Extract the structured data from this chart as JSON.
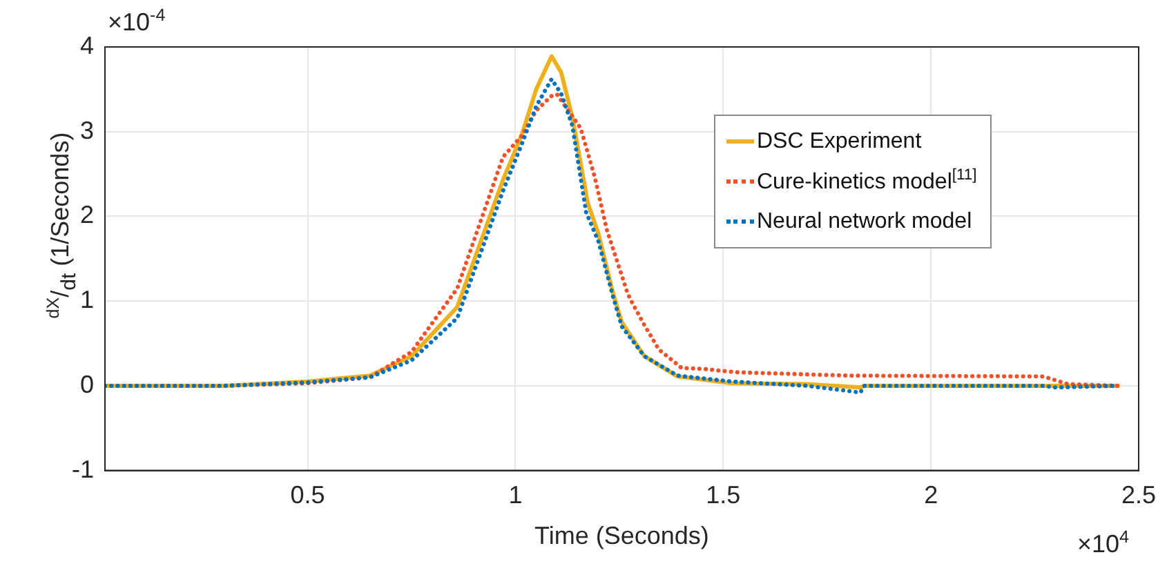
{
  "chart_data": {
    "type": "line",
    "xlabel": "Time (Seconds)",
    "ylabel": "$^{dX}$/$_{dt}$ (1/Seconds)",
    "annotations": [
      "×10$^{-4}$",
      "×10$^{4}$"
    ],
    "xlim": [
      0.012,
      2.5
    ],
    "xticks": [
      0.5,
      1,
      1.5,
      2,
      2.5
    ],
    "ylim": [
      -1,
      4
    ],
    "yticks": [
      -1,
      0,
      1,
      2,
      3,
      4
    ],
    "grid": true,
    "legend": "top right",
    "marker": "none",
    "series": [
      {
        "name": "DSC Experiment",
        "color": "#edb120",
        "line_style": "solid",
        "x": [
          0.012,
          0.3,
          0.5,
          0.65,
          0.75,
          0.86,
          0.97,
          1.015,
          1.05,
          1.087,
          1.11,
          1.137,
          1.174,
          1.2,
          1.235,
          1.256,
          1.31,
          1.39,
          1.52,
          1.7,
          1.83,
          1.84,
          2.1,
          2.45
        ],
        "values": [
          0,
          0,
          0.05,
          0.12,
          0.35,
          0.93,
          2.43,
          2.96,
          3.5,
          3.89,
          3.7,
          3.17,
          2.16,
          1.79,
          1.09,
          0.75,
          0.35,
          0.11,
          0.03,
          0.02,
          -0.02,
          0,
          0,
          0
        ]
      },
      {
        "name": "Cure-kinetics model$^{[11]}$",
        "color": "#f0522a",
        "line_style": "dotted",
        "x": [
          0.012,
          0.3,
          0.5,
          0.65,
          0.75,
          0.86,
          0.97,
          1.015,
          1.05,
          1.087,
          1.1,
          1.157,
          1.19,
          1.22,
          1.27,
          1.28,
          1.31,
          1.345,
          1.4,
          1.45,
          1.53,
          1.8,
          2.27,
          2.33,
          2.45
        ],
        "values": [
          0,
          0,
          0.03,
          0.1,
          0.4,
          1.15,
          2.7,
          2.95,
          3.25,
          3.42,
          3.44,
          3.04,
          2.48,
          1.84,
          1.09,
          0.99,
          0.72,
          0.43,
          0.21,
          0.2,
          0.16,
          0.12,
          0.11,
          0.02,
          0
        ]
      },
      {
        "name": "Neural network model",
        "color": "#0072bd",
        "line_style": "dotted",
        "x": [
          0.012,
          0.3,
          0.5,
          0.65,
          0.75,
          0.86,
          0.97,
          1.015,
          1.05,
          1.087,
          1.11,
          1.137,
          1.17,
          1.2,
          1.235,
          1.256,
          1.31,
          1.39,
          1.52,
          1.7,
          1.83,
          1.84,
          2.27,
          2.3,
          2.45
        ],
        "values": [
          0,
          0,
          0.04,
          0.1,
          0.3,
          0.8,
          2.3,
          2.85,
          3.3,
          3.62,
          3.45,
          3.07,
          2.05,
          1.7,
          1.05,
          0.7,
          0.35,
          0.12,
          0.05,
          0,
          -0.08,
          0,
          0,
          -0.02,
          0
        ]
      }
    ]
  }
}
